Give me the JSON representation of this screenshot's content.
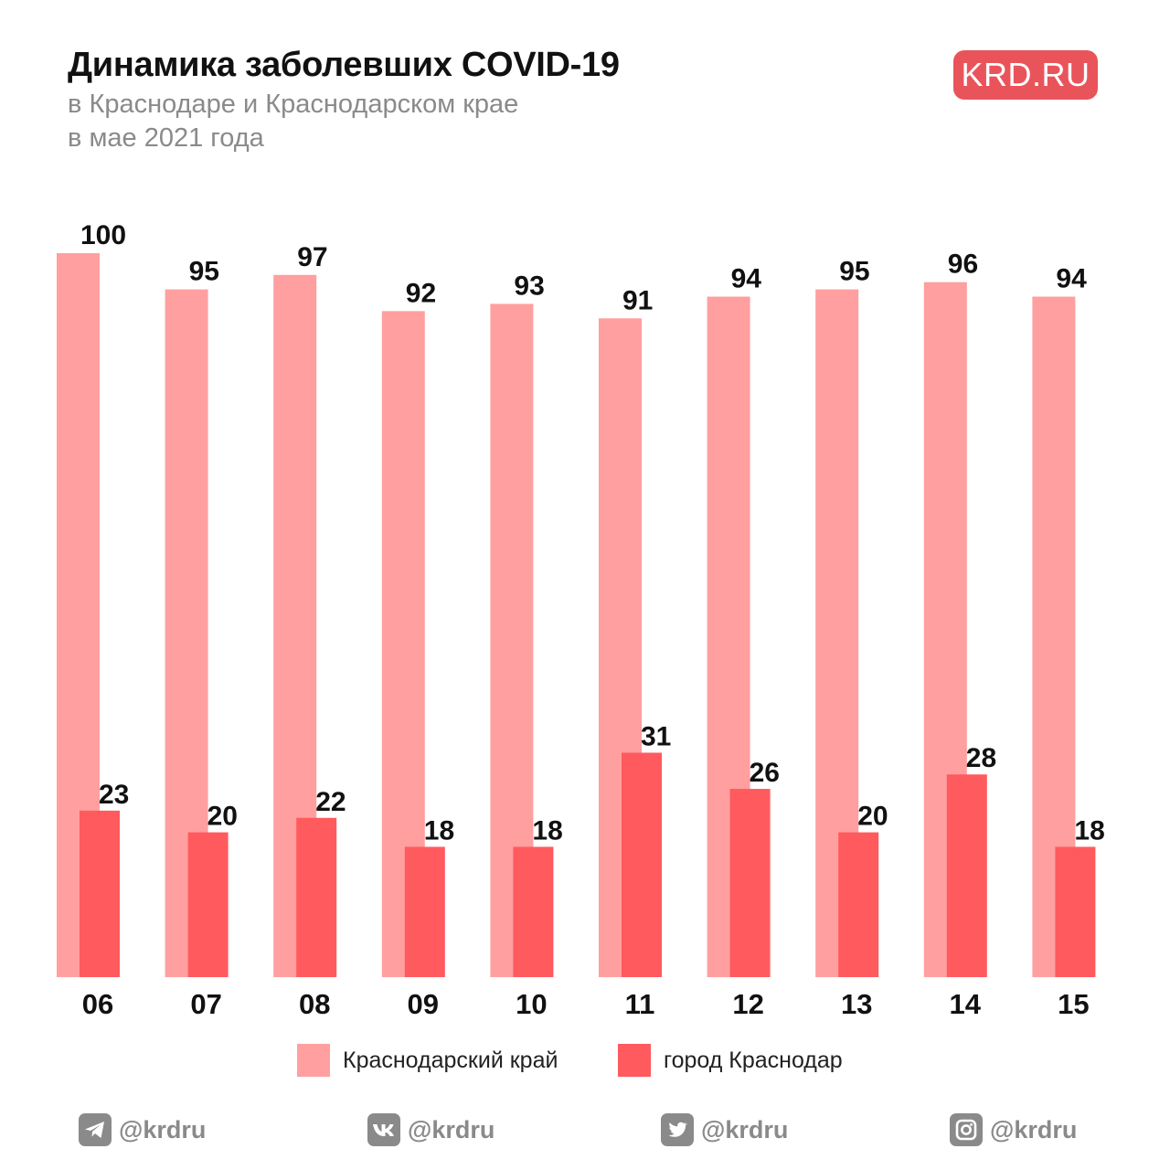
{
  "header": {
    "title": "Динамика заболевших COVID-19",
    "subtitle_line1": "в Краснодаре и Краснодарском крае",
    "subtitle_line2": "в мае 2021 года",
    "logo": "KRD.RU"
  },
  "colors": {
    "region": "#ff9f9f",
    "city": "#ff5a5e",
    "logo_bg": "#e9545a",
    "footer": "#8a8a8a"
  },
  "chart_data": {
    "type": "bar",
    "title": "Динамика заболевших COVID-19",
    "subtitle": "в Краснодаре и Краснодарском крае в мае 2021 года",
    "categories": [
      "06",
      "07",
      "08",
      "09",
      "10",
      "11",
      "12",
      "13",
      "14",
      "15"
    ],
    "series": [
      {
        "name": "Краснодарский край",
        "color": "#ff9f9f",
        "values": [
          100,
          95,
          97,
          92,
          93,
          91,
          94,
          95,
          96,
          94
        ]
      },
      {
        "name": "город Краснодар",
        "color": "#ff5a5e",
        "values": [
          23,
          20,
          22,
          18,
          18,
          31,
          26,
          20,
          28,
          18
        ]
      }
    ],
    "ylim": [
      0,
      100
    ],
    "grid": false,
    "legend": "bottom",
    "xlabel": "",
    "ylabel": ""
  },
  "legend": {
    "items": [
      {
        "label": "Краснодарский край",
        "color": "#ff9f9f"
      },
      {
        "label": "город Краснодар",
        "color": "#ff5a5e"
      }
    ]
  },
  "footer": {
    "items": [
      {
        "icon": "telegram-icon",
        "handle": "@krdru"
      },
      {
        "icon": "vk-icon",
        "handle": "@krdru"
      },
      {
        "icon": "twitter-icon",
        "handle": "@krdru"
      },
      {
        "icon": "instagram-icon",
        "handle": "@krdru"
      }
    ]
  }
}
